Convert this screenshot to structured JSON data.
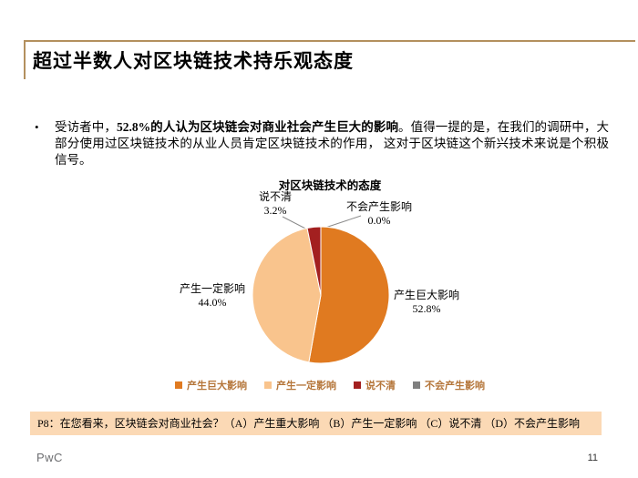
{
  "slide": {
    "title": "超过半数人对区块链技术持乐观态度",
    "bullet_marker": "•",
    "bullet": {
      "prefix": "受访者中，",
      "bold": "52.8%的人认为区块链会对商业社会产生巨大的影响",
      "suffix": "。值得一提的是，在我们的调研中，大部分使用过区块链技术的从业人员肯定区块链技术的作用， 这对于区块链这个新兴技术来说是个积极信号。"
    },
    "question_bar": "P8：在您看来，区块链会对商业社会？（A）产生重大影响 （B）产生一定影响 （C）说不清 （D）不会产生影响",
    "logo": "PwC",
    "page_number": "11"
  },
  "chart_data": {
    "type": "pie",
    "title": "对区块链技术的态度",
    "categories": [
      "产生巨大影响",
      "产生一定影响",
      "说不清",
      "不会产生影响"
    ],
    "values": [
      52.8,
      44.0,
      3.2,
      0.0
    ],
    "value_labels": [
      "52.8%",
      "44.0%",
      "3.2%",
      "0.0%"
    ],
    "colors": [
      "#e07a20",
      "#f9c48d",
      "#a32020",
      "#808080"
    ],
    "start_angle_deg": 0,
    "direction": "clockwise",
    "legend_position": "bottom",
    "legend_text_color": "#b5763a",
    "leader_line_color": "#8c8c8c"
  },
  "theme": {
    "accent_rule": "#b3905e",
    "question_bar_bg": "#fbd9b5"
  }
}
